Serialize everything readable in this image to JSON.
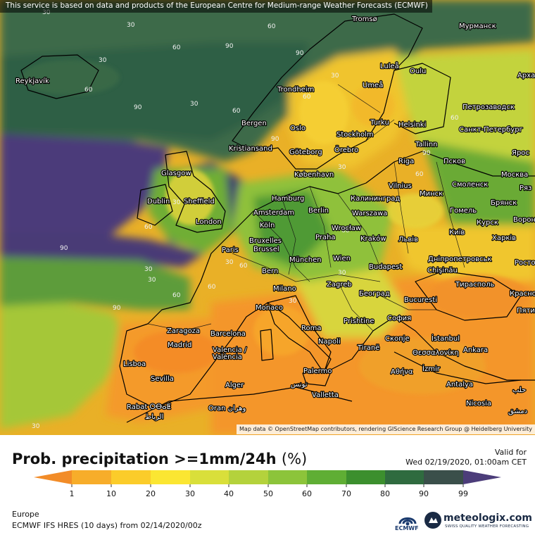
{
  "header": {
    "attribution_top": "This service is based on data and products of the European Centre for Medium-range Weather Forecasts (ECMWF)",
    "attribution_map": "Map data © OpenStreetMap contributors, rendering GIScience Research Group @ Heidelberg University"
  },
  "legend": {
    "title": "Prob. precipitation >=1mm/24h",
    "unit": "(%)",
    "ticks": [
      "1",
      "10",
      "20",
      "30",
      "40",
      "50",
      "60",
      "70",
      "80",
      "90",
      "99"
    ],
    "colors": [
      "#f28c28",
      "#f7ad2a",
      "#fbcc2a",
      "#fbe632",
      "#d9df3a",
      "#b4d23c",
      "#8cc43a",
      "#5fae34",
      "#3c8f2e",
      "#2f6b3f",
      "#3a4f4a",
      "#4c3d7a"
    ]
  },
  "valid": {
    "label": "Valid for",
    "date": "Wed 02/19/2020, 01:00am CET"
  },
  "footer": {
    "region": "Europe",
    "model": "ECMWF IFS HRES (10 days) from 02/14/2020/00z",
    "ecmwf": "ECMWF",
    "brand": "meteologix.com",
    "tagline": "SWISS QUALITY WEATHER FORECASTING"
  },
  "cities": [
    {
      "name": "Tromsø"
    },
    {
      "name": "Мурманск"
    },
    {
      "name": "Reykjavík"
    },
    {
      "name": "Luleå"
    },
    {
      "name": "Oulu"
    },
    {
      "name": "Trondheim"
    },
    {
      "name": "Umeå"
    },
    {
      "name": "Арха"
    },
    {
      "name": "Петрозаводск"
    },
    {
      "name": "Bergen"
    },
    {
      "name": "Oslo"
    },
    {
      "name": "Turku"
    },
    {
      "name": "Helsinki"
    },
    {
      "name": "Санкт-Петербург"
    },
    {
      "name": "Stockholm"
    },
    {
      "name": "Örebro"
    },
    {
      "name": "Kristiansand"
    },
    {
      "name": "Göteborg"
    },
    {
      "name": "Tallinn"
    },
    {
      "name": "Ярос"
    },
    {
      "name": "Glasgow"
    },
    {
      "name": "København"
    },
    {
      "name": "Riga"
    },
    {
      "name": "Псков"
    },
    {
      "name": "Москва"
    },
    {
      "name": "Vilnius"
    },
    {
      "name": "Смоленск"
    },
    {
      "name": "Ряз"
    },
    {
      "name": "Sheffield"
    },
    {
      "name": "Hamburg"
    },
    {
      "name": "Калининград"
    },
    {
      "name": "Минск"
    },
    {
      "name": "Dublin"
    },
    {
      "name": "Брянск"
    },
    {
      "name": "Berlin"
    },
    {
      "name": "Amsterdam"
    },
    {
      "name": "Warszawa"
    },
    {
      "name": "Гомель"
    },
    {
      "name": "London"
    },
    {
      "name": "Курск"
    },
    {
      "name": "Ворон"
    },
    {
      "name": "Köln"
    },
    {
      "name": "Wrocław"
    },
    {
      "name": "Київ"
    },
    {
      "name": "Bruxelles"
    },
    {
      "name": "Brussel"
    },
    {
      "name": "Praha"
    },
    {
      "name": "Kraków"
    },
    {
      "name": "Львів"
    },
    {
      "name": "Харків"
    },
    {
      "name": "Paris"
    },
    {
      "name": "München"
    },
    {
      "name": "Wien"
    },
    {
      "name": "Дніпропетровськ"
    },
    {
      "name": "Росто"
    },
    {
      "name": "Bern"
    },
    {
      "name": "Budapest"
    },
    {
      "name": "Chişinău"
    },
    {
      "name": "Тирасполь"
    },
    {
      "name": "Milano"
    },
    {
      "name": "Zagreb"
    },
    {
      "name": "Краснo"
    },
    {
      "name": "Monaco"
    },
    {
      "name": "Београд"
    },
    {
      "name": "Bucuresti"
    },
    {
      "name": "Пяти"
    },
    {
      "name": "Zaragoza"
    },
    {
      "name": "Barcelona"
    },
    {
      "name": "Roma"
    },
    {
      "name": "Prishtine"
    },
    {
      "name": "София"
    },
    {
      "name": "Madrid"
    },
    {
      "name": "Valencia /"
    },
    {
      "name": "València"
    },
    {
      "name": "Napoli"
    },
    {
      "name": "Tiranë"
    },
    {
      "name": "Скопје"
    },
    {
      "name": "İstanbul"
    },
    {
      "name": "Θεσσαλονίκη"
    },
    {
      "name": "Ankara"
    },
    {
      "name": "Lisboa"
    },
    {
      "name": "Αθήνα"
    },
    {
      "name": "İzmir"
    },
    {
      "name": "Palermo"
    },
    {
      "name": "Sevilla"
    },
    {
      "name": "Alger"
    },
    {
      "name": "تونس"
    },
    {
      "name": "Antalya"
    },
    {
      "name": "Valletta"
    },
    {
      "name": "حلب"
    },
    {
      "name": "Rabat ⵔⴱⴰⵟ"
    },
    {
      "name": "الرباط"
    },
    {
      "name": "Oran وهران"
    },
    {
      "name": "Nicosia"
    },
    {
      "name": "دمشق"
    }
  ],
  "contour_labels": [
    "30",
    "60",
    "90",
    "30",
    "60",
    "90",
    "30",
    "60",
    "30",
    "90",
    "60",
    "30",
    "60",
    "90",
    "30",
    "60",
    "30",
    "60",
    "90",
    "30",
    "60",
    "30",
    "90",
    "60",
    "30",
    "60",
    "30",
    "60",
    "30",
    "30",
    "60",
    "90"
  ]
}
